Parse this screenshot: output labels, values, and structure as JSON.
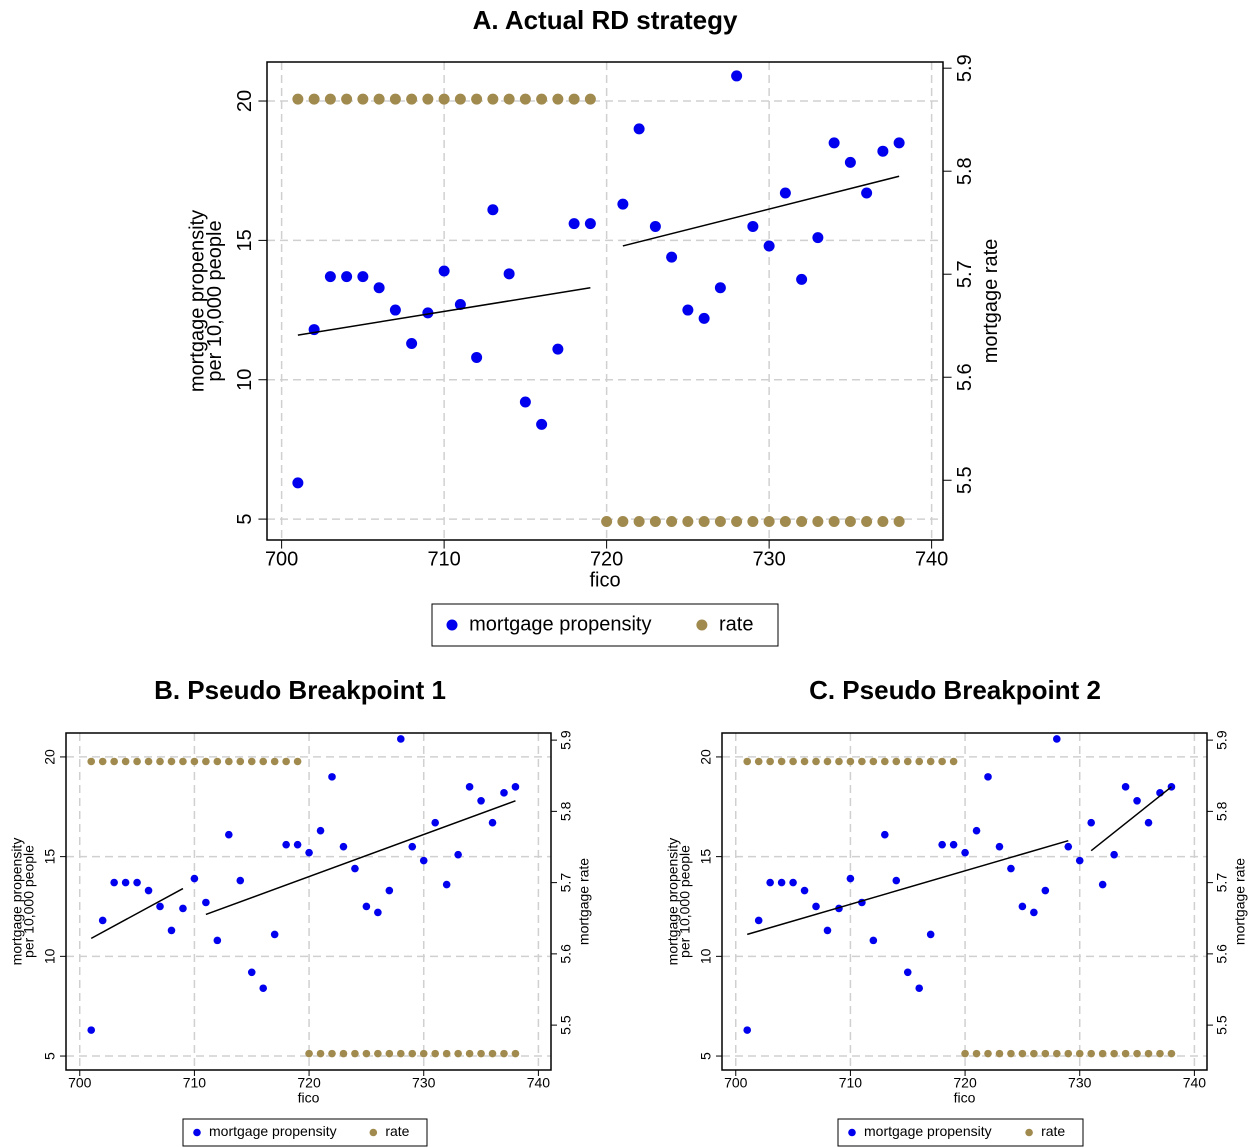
{
  "chart_data": [
    {
      "type": "scatter",
      "title": "A. Actual RD strategy",
      "x_label": "fico",
      "y_label": [
        "mortgage propensity",
        "per 10,000 people"
      ],
      "y2_label": "mortgage rate",
      "xlim": [
        699.1,
        740.7
      ],
      "xticks": [
        700,
        710,
        720,
        730,
        740
      ],
      "ylim": [
        4.25,
        21.4
      ],
      "yticks": [
        5,
        10,
        15,
        20
      ],
      "y2lim": [
        5.442,
        5.906
      ],
      "y2ticks": [
        5.5,
        5.6,
        5.7,
        5.8,
        5.9
      ],
      "grid": true,
      "legend": "bottom",
      "series": [
        {
          "name": "mortgage propensity",
          "color": "#0000ee",
          "x": [
            701,
            702,
            703,
            704,
            705,
            706,
            707,
            708,
            709,
            710,
            711,
            712,
            713,
            714,
            715,
            716,
            717,
            718,
            719,
            721,
            722,
            723,
            724,
            725,
            726,
            727,
            728,
            729,
            730,
            731,
            732,
            733,
            734,
            735,
            736,
            737,
            738
          ],
          "values": [
            6.3,
            11.8,
            13.7,
            13.7,
            13.7,
            13.3,
            12.5,
            11.3,
            12.4,
            13.9,
            12.7,
            10.8,
            16.1,
            13.8,
            9.2,
            8.4,
            11.1,
            15.6,
            15.6,
            16.3,
            19.0,
            15.5,
            14.4,
            12.5,
            12.2,
            13.3,
            20.9,
            15.5,
            14.8,
            16.7,
            13.6,
            15.1,
            18.5,
            17.8,
            16.7,
            18.2,
            18.5
          ]
        },
        {
          "name": "rate",
          "color": "#a08a4e",
          "axis": "y2",
          "x": [
            701,
            702,
            703,
            704,
            705,
            706,
            707,
            708,
            709,
            710,
            711,
            712,
            713,
            714,
            715,
            716,
            717,
            718,
            719,
            720,
            721,
            722,
            723,
            724,
            725,
            726,
            727,
            728,
            729,
            730,
            731,
            732,
            733,
            734,
            735,
            736,
            737,
            738
          ],
          "values": [
            5.87,
            5.87,
            5.87,
            5.87,
            5.87,
            5.87,
            5.87,
            5.87,
            5.87,
            5.87,
            5.87,
            5.87,
            5.87,
            5.87,
            5.87,
            5.87,
            5.87,
            5.87,
            5.87,
            5.46,
            5.46,
            5.46,
            5.46,
            5.46,
            5.46,
            5.46,
            5.46,
            5.46,
            5.46,
            5.46,
            5.46,
            5.46,
            5.46,
            5.46,
            5.46,
            5.46,
            5.46,
            5.46
          ]
        }
      ],
      "fits": [
        {
          "color": "#000000",
          "x": [
            701,
            719
          ],
          "values": [
            11.6,
            13.3
          ]
        },
        {
          "color": "#000000",
          "x": [
            721,
            738
          ],
          "values": [
            14.8,
            17.3
          ]
        }
      ]
    },
    {
      "type": "scatter",
      "title": "B. Pseudo Breakpoint 1",
      "x_label": "fico",
      "y_label": [
        "mortgage propensity",
        "per 10,000 people"
      ],
      "y2_label": "mortgage rate",
      "xlim": [
        698.8,
        741.1
      ],
      "xticks": [
        700,
        710,
        720,
        730,
        740
      ],
      "ylim": [
        4.3,
        21.2
      ],
      "yticks": [
        5,
        10,
        15,
        20
      ],
      "y2lim": [
        5.437,
        5.91
      ],
      "y2ticks": [
        5.5,
        5.6,
        5.7,
        5.8,
        5.9
      ],
      "grid": true,
      "legend": "bottom",
      "series": [
        {
          "name": "mortgage propensity",
          "color": "#0000ee",
          "x": [
            701,
            702,
            703,
            704,
            705,
            706,
            707,
            708,
            709,
            710,
            711,
            712,
            713,
            714,
            715,
            716,
            717,
            718,
            719,
            720,
            721,
            722,
            723,
            724,
            725,
            726,
            727,
            728,
            729,
            730,
            731,
            732,
            733,
            734,
            735,
            736,
            737,
            738
          ],
          "values": [
            6.3,
            11.8,
            13.7,
            13.7,
            13.7,
            13.3,
            12.5,
            11.3,
            12.4,
            13.9,
            12.7,
            10.8,
            16.1,
            13.8,
            9.2,
            8.4,
            11.1,
            15.6,
            15.6,
            15.2,
            16.3,
            19.0,
            15.5,
            14.4,
            12.5,
            12.2,
            13.3,
            20.9,
            15.5,
            14.8,
            16.7,
            13.6,
            15.1,
            18.5,
            17.8,
            16.7,
            18.2,
            18.5
          ]
        },
        {
          "name": "rate",
          "color": "#a08a4e",
          "axis": "y2",
          "x": [
            701,
            702,
            703,
            704,
            705,
            706,
            707,
            708,
            709,
            710,
            711,
            712,
            713,
            714,
            715,
            716,
            717,
            718,
            719,
            720,
            721,
            722,
            723,
            724,
            725,
            726,
            727,
            728,
            729,
            730,
            731,
            732,
            733,
            734,
            735,
            736,
            737,
            738
          ],
          "values": [
            5.87,
            5.87,
            5.87,
            5.87,
            5.87,
            5.87,
            5.87,
            5.87,
            5.87,
            5.87,
            5.87,
            5.87,
            5.87,
            5.87,
            5.87,
            5.87,
            5.87,
            5.87,
            5.87,
            5.46,
            5.46,
            5.46,
            5.46,
            5.46,
            5.46,
            5.46,
            5.46,
            5.46,
            5.46,
            5.46,
            5.46,
            5.46,
            5.46,
            5.46,
            5.46,
            5.46,
            5.46,
            5.46
          ]
        }
      ],
      "fits": [
        {
          "color": "#000000",
          "x": [
            701,
            709
          ],
          "values": [
            10.9,
            13.4
          ]
        },
        {
          "color": "#000000",
          "x": [
            711,
            738
          ],
          "values": [
            12.1,
            17.8
          ]
        }
      ]
    },
    {
      "type": "scatter",
      "title": "C. Pseudo Breakpoint 2",
      "x_label": "fico",
      "y_label": [
        "mortgage propensity",
        "per 10,000 people"
      ],
      "y2_label": "mortgage rate",
      "xlim": [
        698.8,
        741.1
      ],
      "xticks": [
        700,
        710,
        720,
        730,
        740
      ],
      "ylim": [
        4.3,
        21.2
      ],
      "yticks": [
        5,
        10,
        15,
        20
      ],
      "y2lim": [
        5.437,
        5.91
      ],
      "y2ticks": [
        5.5,
        5.6,
        5.7,
        5.8,
        5.9
      ],
      "grid": true,
      "legend": "bottom",
      "series": [
        {
          "name": "mortgage propensity",
          "color": "#0000ee",
          "x": [
            701,
            702,
            703,
            704,
            705,
            706,
            707,
            708,
            709,
            710,
            711,
            712,
            713,
            714,
            715,
            716,
            717,
            718,
            719,
            720,
            721,
            722,
            723,
            724,
            725,
            726,
            727,
            728,
            729,
            730,
            731,
            732,
            733,
            734,
            735,
            736,
            737,
            738
          ],
          "values": [
            6.3,
            11.8,
            13.7,
            13.7,
            13.7,
            13.3,
            12.5,
            11.3,
            12.4,
            13.9,
            12.7,
            10.8,
            16.1,
            13.8,
            9.2,
            8.4,
            11.1,
            15.6,
            15.6,
            15.2,
            16.3,
            19.0,
            15.5,
            14.4,
            12.5,
            12.2,
            13.3,
            20.9,
            15.5,
            14.8,
            16.7,
            13.6,
            15.1,
            18.5,
            17.8,
            16.7,
            18.2,
            18.5
          ]
        },
        {
          "name": "rate",
          "color": "#a08a4e",
          "axis": "y2",
          "x": [
            701,
            702,
            703,
            704,
            705,
            706,
            707,
            708,
            709,
            710,
            711,
            712,
            713,
            714,
            715,
            716,
            717,
            718,
            719,
            720,
            721,
            722,
            723,
            724,
            725,
            726,
            727,
            728,
            729,
            730,
            731,
            732,
            733,
            734,
            735,
            736,
            737,
            738
          ],
          "values": [
            5.87,
            5.87,
            5.87,
            5.87,
            5.87,
            5.87,
            5.87,
            5.87,
            5.87,
            5.87,
            5.87,
            5.87,
            5.87,
            5.87,
            5.87,
            5.87,
            5.87,
            5.87,
            5.87,
            5.46,
            5.46,
            5.46,
            5.46,
            5.46,
            5.46,
            5.46,
            5.46,
            5.46,
            5.46,
            5.46,
            5.46,
            5.46,
            5.46,
            5.46,
            5.46,
            5.46,
            5.46,
            5.46
          ]
        }
      ],
      "fits": [
        {
          "color": "#000000",
          "x": [
            701,
            729
          ],
          "values": [
            11.1,
            15.8
          ]
        },
        {
          "color": "#000000",
          "x": [
            731,
            738
          ],
          "values": [
            15.3,
            18.5
          ]
        }
      ]
    }
  ]
}
